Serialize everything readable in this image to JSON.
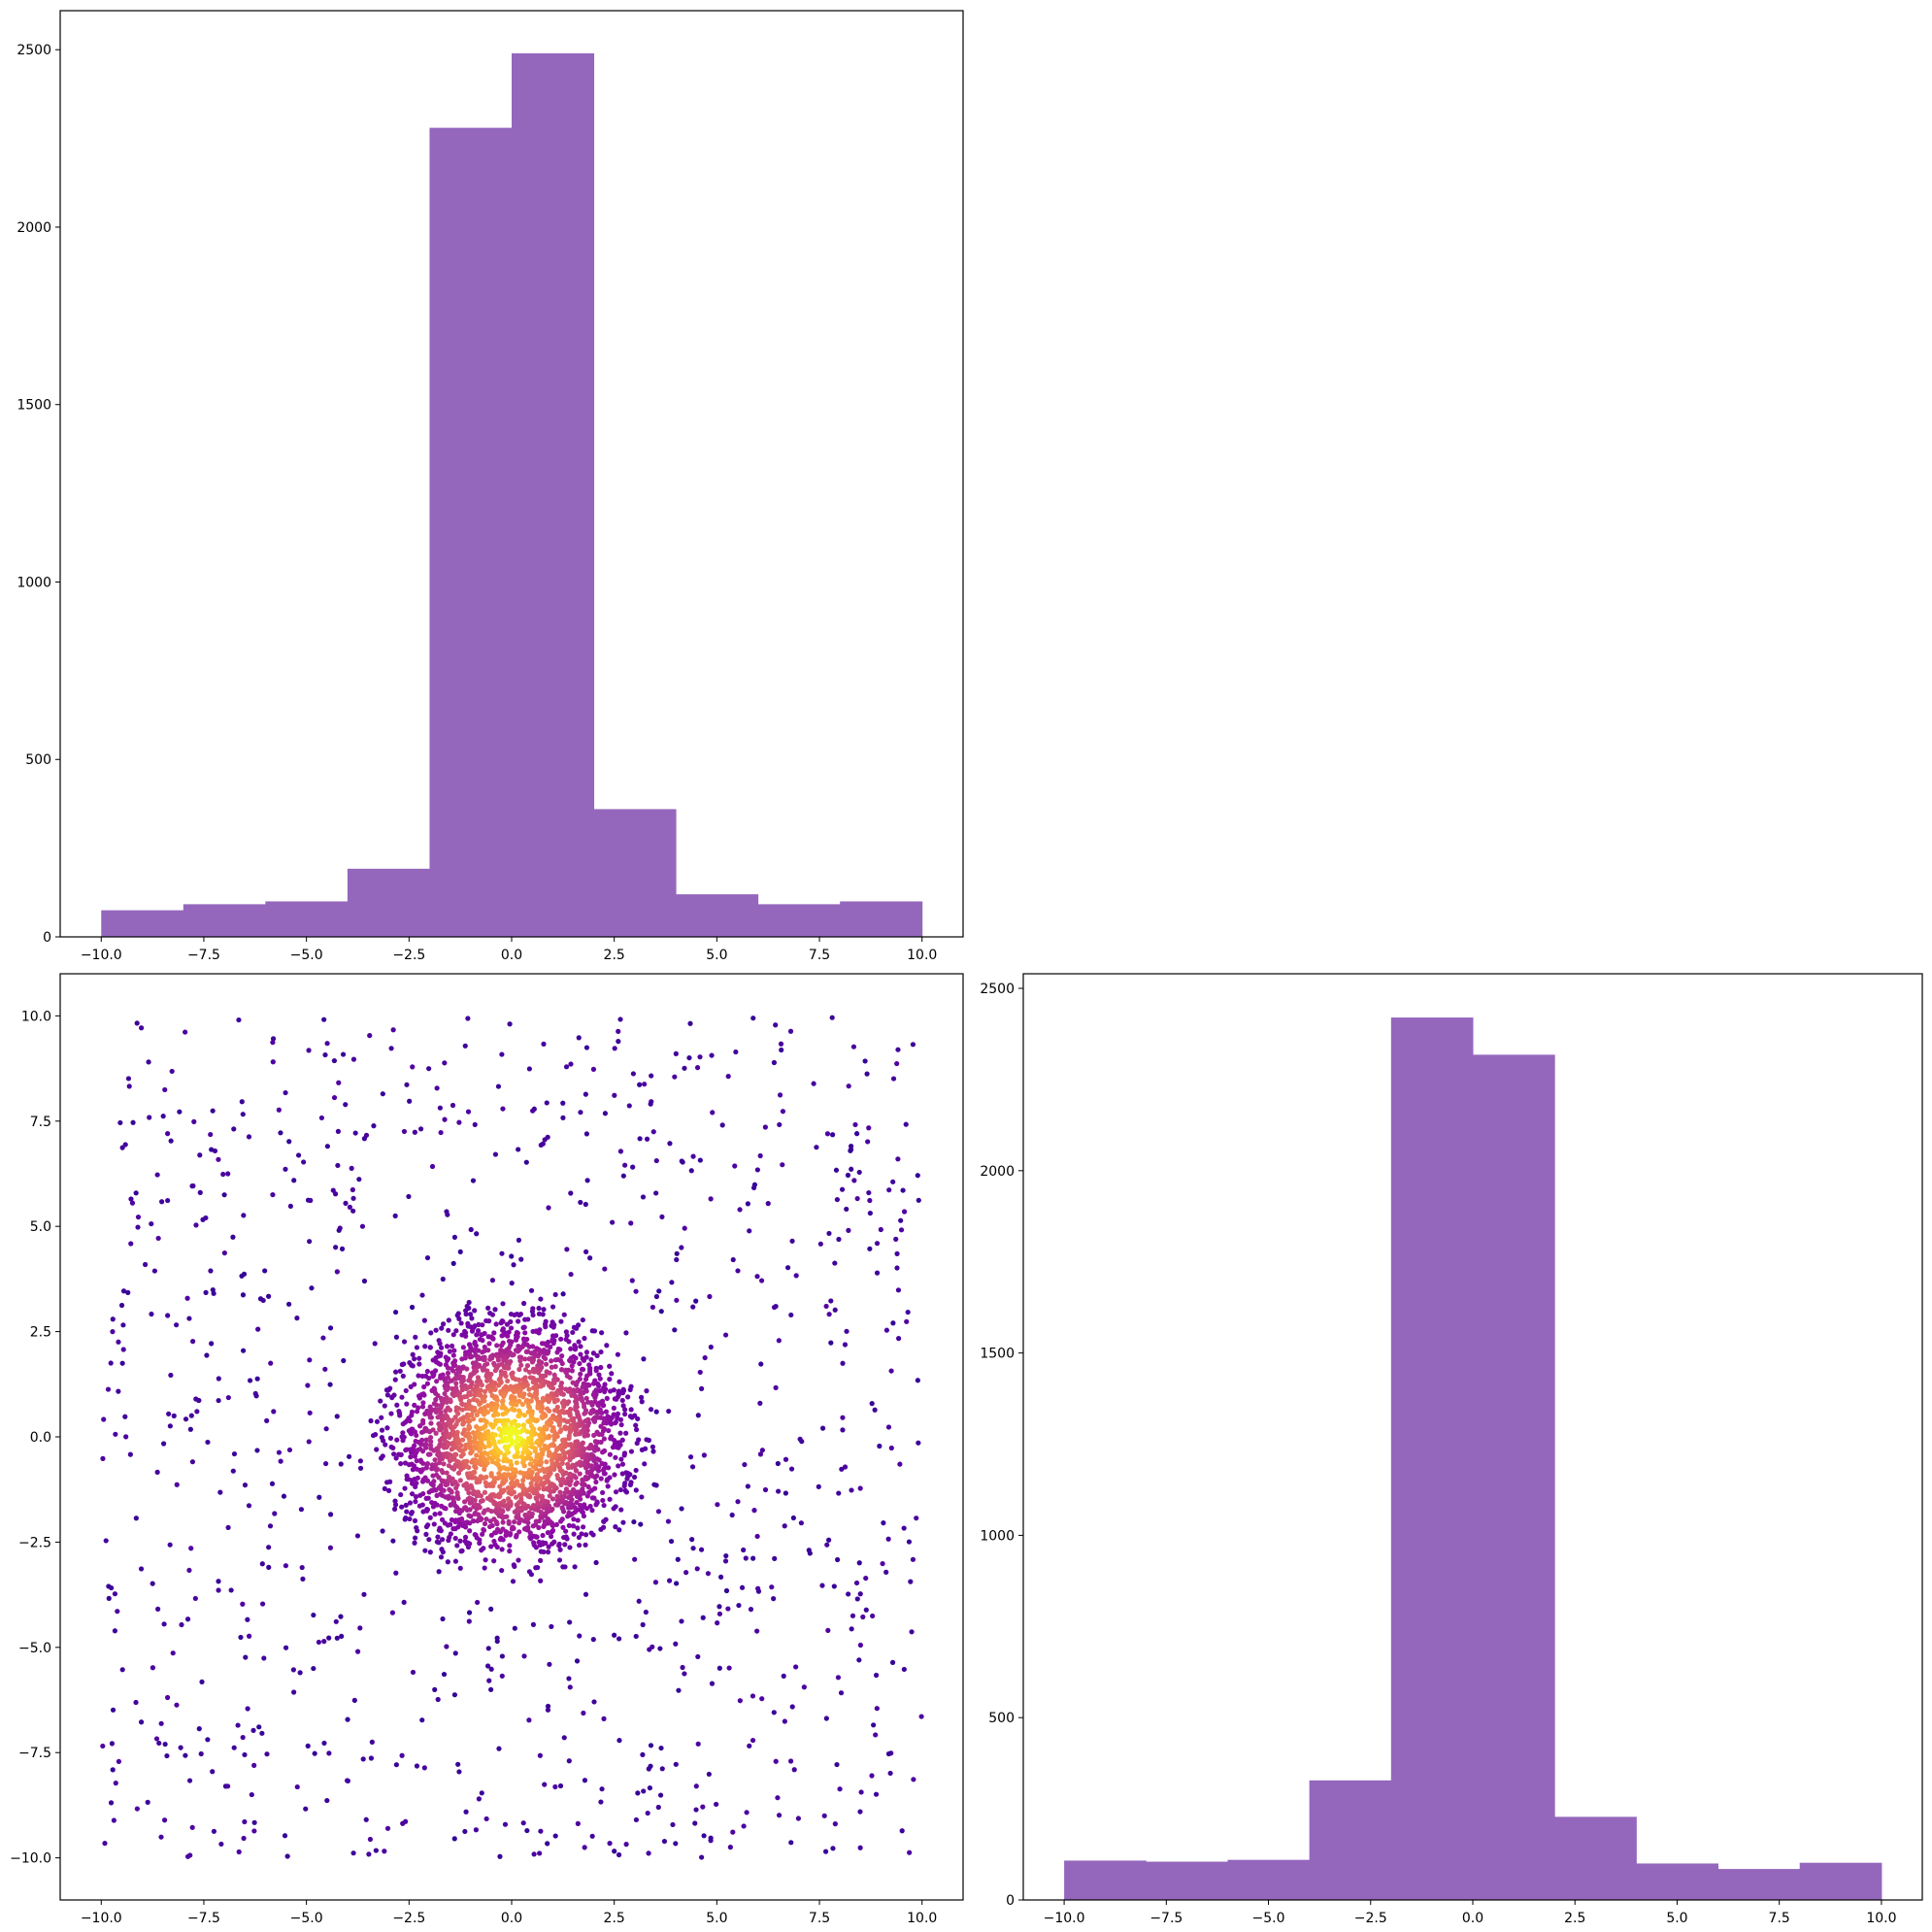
{
  "colors": {
    "bar_fill": "#9467bd",
    "axes_frame": "#000000",
    "background": "#ffffff",
    "scatter_colormap": [
      "#0d0887",
      "#5302a3",
      "#8b0aa5",
      "#b83289",
      "#db5c68",
      "#f48849",
      "#febd2a",
      "#f0f921"
    ]
  },
  "chart_data": [
    {
      "type": "bar",
      "panel": "top-left",
      "bin_edges": [
        -10,
        -8,
        -6,
        -4,
        -2,
        0,
        2,
        4,
        6,
        8,
        10
      ],
      "values": [
        75,
        92,
        100,
        192,
        2280,
        2490,
        360,
        120,
        92,
        100
      ],
      "xlim": [
        -11,
        11
      ],
      "ylim": [
        0,
        2610
      ],
      "xticks": [
        -10,
        -7.5,
        -5,
        -2.5,
        0,
        2.5,
        5,
        7.5,
        10
      ],
      "xtick_labels": [
        "−10.0",
        "−7.5",
        "−5.0",
        "−2.5",
        "0.0",
        "2.5",
        "5.0",
        "7.5",
        "10.0"
      ],
      "yticks": [
        0,
        500,
        1000,
        1500,
        2000,
        2500
      ],
      "ytick_labels": [
        "0",
        "500",
        "1000",
        "1500",
        "2000",
        "2500"
      ],
      "grid": false,
      "title": "",
      "xlabel": "",
      "ylabel": ""
    },
    {
      "type": "scatter",
      "panel": "bottom-left",
      "description_of_points": "uniform background points over [-10,10]x[-10,10] plus a dense radial cluster centered at (0,0) with radius about 3.5; color encodes local density using the plasma colormap",
      "uniform_points_count": 1000,
      "cluster_points_count": 2500,
      "cluster_center": [
        0,
        0
      ],
      "cluster_radius": 3.5,
      "xlim": [
        -11,
        11
      ],
      "ylim": [
        -11,
        11
      ],
      "xticks": [
        -10,
        -7.5,
        -5,
        -2.5,
        0,
        2.5,
        5,
        7.5,
        10
      ],
      "xtick_labels": [
        "−10.0",
        "−7.5",
        "−5.0",
        "−2.5",
        "0.0",
        "2.5",
        "5.0",
        "7.5",
        "10.0"
      ],
      "yticks": [
        10,
        7.5,
        5,
        2.5,
        0,
        -2.5,
        -5,
        -7.5,
        -10
      ],
      "ytick_labels": [
        "10.0",
        "7.5",
        "5.0",
        "2.5",
        "0.0",
        "−2.5",
        "−5.0",
        "−7.5",
        "−10.0"
      ],
      "grid": false,
      "title": "",
      "xlabel": "",
      "ylabel": ""
    },
    {
      "type": "bar",
      "panel": "bottom-right",
      "bin_edges": [
        -10,
        -8,
        -6,
        -4,
        -2,
        0,
        2,
        4,
        6,
        8,
        10
      ],
      "values": [
        108,
        105,
        110,
        328,
        2420,
        2318,
        228,
        100,
        85,
        102
      ],
      "xlim": [
        -11,
        11
      ],
      "ylim": [
        0,
        2540
      ],
      "xticks": [
        -10,
        -7.5,
        -5,
        -2.5,
        0,
        2.5,
        5,
        7.5,
        10
      ],
      "xtick_labels": [
        "−10.0",
        "−7.5",
        "−5.0",
        "−2.5",
        "0.0",
        "2.5",
        "5.0",
        "7.5",
        "10.0"
      ],
      "yticks": [
        0,
        500,
        1000,
        1500,
        2000,
        2500
      ],
      "ytick_labels": [
        "0",
        "500",
        "1000",
        "1500",
        "2000",
        "2500"
      ],
      "grid": false,
      "title": "",
      "xlabel": "",
      "ylabel": ""
    }
  ]
}
